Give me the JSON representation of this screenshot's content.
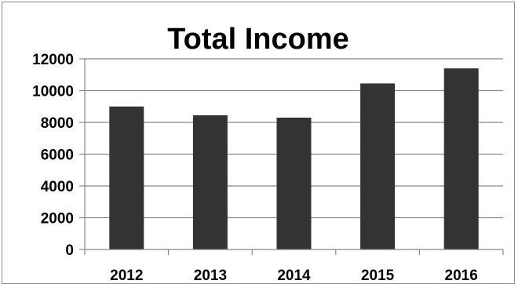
{
  "chart_data": {
    "type": "bar",
    "title": "Total Income",
    "categories": [
      "2012",
      "2013",
      "2014",
      "2015",
      "2016"
    ],
    "values": [
      9000,
      8450,
      8300,
      10450,
      11400
    ],
    "ylim": [
      0,
      12000
    ],
    "yticks": [
      0,
      2000,
      4000,
      6000,
      8000,
      10000,
      12000
    ],
    "grid": true,
    "legend": "none",
    "bar_color": "#333333",
    "grid_color": "#888888"
  }
}
